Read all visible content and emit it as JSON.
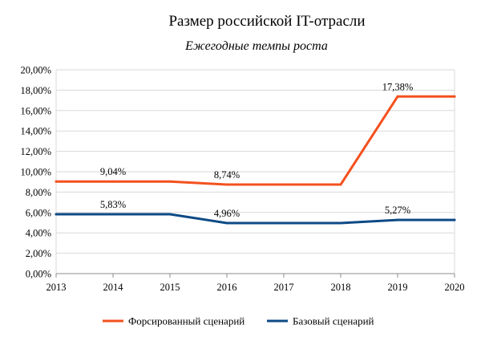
{
  "chart_data": {
    "type": "line",
    "title": "Размер российской IT-отрасли",
    "subtitle": "Ежегодные темпы роста",
    "xlabel": "",
    "ylabel": "",
    "x": [
      2013,
      2014,
      2015,
      2016,
      2017,
      2018,
      2019,
      2020
    ],
    "x_tick_labels": [
      "2013",
      "2014",
      "2015",
      "2016",
      "2017",
      "2018",
      "2019",
      "2020"
    ],
    "ylim": [
      0,
      20
    ],
    "y_tick_values": [
      0,
      2,
      4,
      6,
      8,
      10,
      12,
      14,
      16,
      18,
      20
    ],
    "y_tick_labels": [
      "0,00%",
      "2,00%",
      "4,00%",
      "6,00%",
      "8,00%",
      "10,00%",
      "12,00%",
      "14,00%",
      "16,00%",
      "18,00%",
      "20,00%"
    ],
    "grid": true,
    "legend_position": "bottom",
    "series": [
      {
        "name": "Форсированный сценарий",
        "color": "#f4511e",
        "values": [
          9.04,
          9.04,
          9.04,
          8.74,
          8.74,
          8.74,
          17.38,
          17.38
        ],
        "data_labels": [
          {
            "x": 2014,
            "y": 9.04,
            "text": "9,04%"
          },
          {
            "x": 2016,
            "y": 8.74,
            "text": "8,74%"
          },
          {
            "x": 2019,
            "y": 17.38,
            "text": "17,38%"
          }
        ]
      },
      {
        "name": "Базовый сценарий",
        "color": "#0d4a86",
        "values": [
          5.83,
          5.83,
          5.83,
          4.96,
          4.96,
          4.96,
          5.27,
          5.27
        ],
        "data_labels": [
          {
            "x": 2014,
            "y": 5.83,
            "text": "5,83%"
          },
          {
            "x": 2016,
            "y": 4.96,
            "text": "4,96%"
          },
          {
            "x": 2019,
            "y": 5.27,
            "text": "5,27%"
          }
        ]
      }
    ]
  }
}
